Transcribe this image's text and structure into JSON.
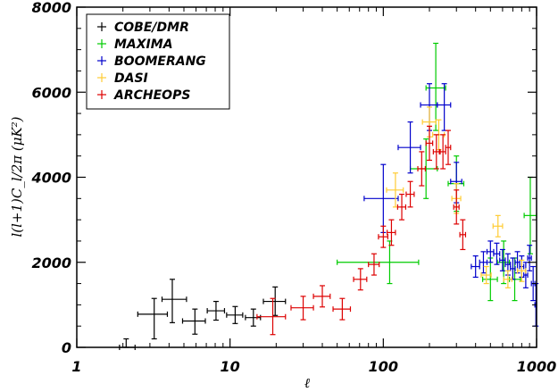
{
  "chart_data": {
    "type": "scatter",
    "x_scale": "log",
    "xlim": [
      1,
      1000
    ],
    "ylim": [
      0,
      8000
    ],
    "xlabel": "ℓ",
    "ylabel": "l(l+1)C_l/2π  (μK²)",
    "x_ticks": [
      {
        "value": 1,
        "label": "1"
      },
      {
        "value": 10,
        "label": "10"
      },
      {
        "value": 100,
        "label": "100"
      },
      {
        "value": 1000,
        "label": "1000"
      }
    ],
    "y_ticks": [
      {
        "value": 0,
        "label": "0"
      },
      {
        "value": 2000,
        "label": "2000"
      },
      {
        "value": 4000,
        "label": "4000"
      },
      {
        "value": 6000,
        "label": "6000"
      },
      {
        "value": 8000,
        "label": "8000"
      }
    ],
    "legend": "top-left",
    "series": [
      {
        "name": "COBE/DMR",
        "color": "#000000",
        "points": [
          {
            "x": 2.1,
            "x_lo": 1.9,
            "x_hi": 2.4,
            "y": 0,
            "y_lo": 0,
            "y_hi": 200
          },
          {
            "x": 3.2,
            "x_lo": 2.5,
            "x_hi": 3.9,
            "y": 780,
            "y_lo": 200,
            "y_hi": 1150
          },
          {
            "x": 4.2,
            "x_lo": 3.6,
            "x_hi": 5.2,
            "y": 1130,
            "y_lo": 580,
            "y_hi": 1600
          },
          {
            "x": 5.9,
            "x_lo": 4.9,
            "x_hi": 6.9,
            "y": 620,
            "y_lo": 310,
            "y_hi": 900
          },
          {
            "x": 8.1,
            "x_lo": 7.1,
            "x_hi": 9.2,
            "y": 860,
            "y_lo": 640,
            "y_hi": 1080
          },
          {
            "x": 10.8,
            "x_lo": 9.5,
            "x_hi": 12.1,
            "y": 760,
            "y_lo": 560,
            "y_hi": 960
          },
          {
            "x": 14.2,
            "x_lo": 12.6,
            "x_hi": 15.8,
            "y": 700,
            "y_lo": 500,
            "y_hi": 900
          },
          {
            "x": 19.7,
            "x_lo": 16.5,
            "x_hi": 23.0,
            "y": 1080,
            "y_lo": 750,
            "y_hi": 1420
          }
        ]
      },
      {
        "name": "MAXIMA",
        "color": "#00cc00",
        "points": [
          {
            "x": 110,
            "x_lo": 50,
            "x_hi": 170,
            "y": 2000,
            "y_lo": 1500,
            "y_hi": 2500
          },
          {
            "x": 190,
            "x_lo": 150,
            "x_hi": 225,
            "y": 4200,
            "y_lo": 3500,
            "y_hi": 4900
          },
          {
            "x": 220,
            "x_lo": 190,
            "x_hi": 255,
            "y": 6100,
            "y_lo": 5100,
            "y_hi": 7150
          },
          {
            "x": 300,
            "x_lo": 265,
            "x_hi": 335,
            "y": 3850,
            "y_lo": 3200,
            "y_hi": 4500
          },
          {
            "x": 500,
            "x_lo": 445,
            "x_hi": 555,
            "y": 1600,
            "y_lo": 1100,
            "y_hi": 2100
          },
          {
            "x": 610,
            "x_lo": 555,
            "x_hi": 665,
            "y": 2000,
            "y_lo": 1500,
            "y_hi": 2500
          },
          {
            "x": 720,
            "x_lo": 665,
            "x_hi": 785,
            "y": 1600,
            "y_lo": 1100,
            "y_hi": 2100
          },
          {
            "x": 910,
            "x_lo": 830,
            "x_hi": 1000,
            "y": 3100,
            "y_lo": 2200,
            "y_hi": 4000
          }
        ]
      },
      {
        "name": "BOOMERANG",
        "color": "#0000cc",
        "points": [
          {
            "x": 100,
            "x_lo": 75,
            "x_hi": 125,
            "y": 3500,
            "y_lo": 2700,
            "y_hi": 4300
          },
          {
            "x": 150,
            "x_lo": 125,
            "x_hi": 175,
            "y": 4700,
            "y_lo": 4100,
            "y_hi": 5300
          },
          {
            "x": 200,
            "x_lo": 175,
            "x_hi": 225,
            "y": 5700,
            "y_lo": 5100,
            "y_hi": 6200
          },
          {
            "x": 250,
            "x_lo": 225,
            "x_hi": 275,
            "y": 5700,
            "y_lo": 5100,
            "y_hi": 6200
          },
          {
            "x": 300,
            "x_lo": 275,
            "x_hi": 325,
            "y": 3900,
            "y_lo": 3400,
            "y_hi": 4350
          },
          {
            "x": 400,
            "x_lo": 375,
            "x_hi": 425,
            "y": 1900,
            "y_lo": 1650,
            "y_hi": 2150
          },
          {
            "x": 450,
            "x_lo": 425,
            "x_hi": 475,
            "y": 2000,
            "y_lo": 1750,
            "y_hi": 2250
          },
          {
            "x": 500,
            "x_lo": 475,
            "x_hi": 525,
            "y": 2250,
            "y_lo": 2000,
            "y_hi": 2500
          },
          {
            "x": 550,
            "x_lo": 525,
            "x_hi": 575,
            "y": 2200,
            "y_lo": 1950,
            "y_hi": 2450
          },
          {
            "x": 600,
            "x_lo": 575,
            "x_hi": 625,
            "y": 2050,
            "y_lo": 1800,
            "y_hi": 2300
          },
          {
            "x": 650,
            "x_lo": 625,
            "x_hi": 675,
            "y": 1950,
            "y_lo": 1700,
            "y_hi": 2200
          },
          {
            "x": 700,
            "x_lo": 675,
            "x_hi": 725,
            "y": 1850,
            "y_lo": 1600,
            "y_hi": 2100
          },
          {
            "x": 750,
            "x_lo": 725,
            "x_hi": 775,
            "y": 2000,
            "y_lo": 1750,
            "y_hi": 2250
          },
          {
            "x": 800,
            "x_lo": 775,
            "x_hi": 825,
            "y": 1900,
            "y_lo": 1650,
            "y_hi": 2150
          },
          {
            "x": 850,
            "x_lo": 825,
            "x_hi": 875,
            "y": 1700,
            "y_lo": 1400,
            "y_hi": 2000
          },
          {
            "x": 900,
            "x_lo": 875,
            "x_hi": 925,
            "y": 2100,
            "y_lo": 1800,
            "y_hi": 2400
          },
          {
            "x": 950,
            "x_lo": 925,
            "x_hi": 975,
            "y": 1500,
            "y_lo": 1100,
            "y_hi": 1900
          },
          {
            "x": 990,
            "x_lo": 975,
            "x_hi": 1000,
            "y": 1000,
            "y_lo": 500,
            "y_hi": 1500
          }
        ]
      },
      {
        "name": "DASI",
        "color": "#ffcc33",
        "points": [
          {
            "x": 120,
            "x_lo": 105,
            "x_hi": 135,
            "y": 3700,
            "y_lo": 3300,
            "y_hi": 4100
          },
          {
            "x": 200,
            "x_lo": 180,
            "x_hi": 220,
            "y": 5300,
            "y_lo": 4950,
            "y_hi": 5650
          },
          {
            "x": 230,
            "x_lo": 210,
            "x_hi": 250,
            "y": 5000,
            "y_lo": 4650,
            "y_hi": 5350
          },
          {
            "x": 300,
            "x_lo": 280,
            "x_hi": 320,
            "y": 3500,
            "y_lo": 3150,
            "y_hi": 3850
          },
          {
            "x": 470,
            "x_lo": 435,
            "x_hi": 505,
            "y": 1700,
            "y_lo": 1500,
            "y_hi": 1900
          },
          {
            "x": 560,
            "x_lo": 520,
            "x_hi": 600,
            "y": 2850,
            "y_lo": 2600,
            "y_hi": 3100
          },
          {
            "x": 650,
            "x_lo": 610,
            "x_hi": 690,
            "y": 1600,
            "y_lo": 1400,
            "y_hi": 1800
          },
          {
            "x": 800,
            "x_lo": 750,
            "x_hi": 850,
            "y": 1800,
            "y_lo": 1550,
            "y_hi": 2050
          }
        ]
      },
      {
        "name": "ARCHEOPS",
        "color": "#dd0000",
        "points": [
          {
            "x": 19,
            "x_lo": 15,
            "x_hi": 23,
            "y": 720,
            "y_lo": 300,
            "y_hi": 1150
          },
          {
            "x": 30,
            "x_lo": 25,
            "x_hi": 35,
            "y": 930,
            "y_lo": 650,
            "y_hi": 1200
          },
          {
            "x": 40,
            "x_lo": 35,
            "x_hi": 45,
            "y": 1200,
            "y_lo": 950,
            "y_hi": 1450
          },
          {
            "x": 54,
            "x_lo": 47,
            "x_hi": 61,
            "y": 900,
            "y_lo": 650,
            "y_hi": 1150
          },
          {
            "x": 71,
            "x_lo": 64,
            "x_hi": 78,
            "y": 1600,
            "y_lo": 1350,
            "y_hi": 1850
          },
          {
            "x": 87,
            "x_lo": 80,
            "x_hi": 94,
            "y": 1950,
            "y_lo": 1700,
            "y_hi": 2200
          },
          {
            "x": 100,
            "x_lo": 93,
            "x_hi": 107,
            "y": 2600,
            "y_lo": 2350,
            "y_hi": 2850
          },
          {
            "x": 113,
            "x_lo": 106,
            "x_hi": 120,
            "y": 2700,
            "y_lo": 2400,
            "y_hi": 3000
          },
          {
            "x": 132,
            "x_lo": 124,
            "x_hi": 140,
            "y": 3300,
            "y_lo": 3000,
            "y_hi": 3600
          },
          {
            "x": 150,
            "x_lo": 141,
            "x_hi": 159,
            "y": 3600,
            "y_lo": 3300,
            "y_hi": 3900
          },
          {
            "x": 178,
            "x_lo": 168,
            "x_hi": 188,
            "y": 4200,
            "y_lo": 3800,
            "y_hi": 4600
          },
          {
            "x": 200,
            "x_lo": 190,
            "x_hi": 210,
            "y": 4800,
            "y_lo": 4400,
            "y_hi": 5200
          },
          {
            "x": 222,
            "x_lo": 212,
            "x_hi": 232,
            "y": 4600,
            "y_lo": 4200,
            "y_hi": 5000
          },
          {
            "x": 245,
            "x_lo": 235,
            "x_hi": 255,
            "y": 4600,
            "y_lo": 4200,
            "y_hi": 5000
          },
          {
            "x": 265,
            "x_lo": 255,
            "x_hi": 275,
            "y": 4700,
            "y_lo": 4300,
            "y_hi": 5100
          },
          {
            "x": 300,
            "x_lo": 288,
            "x_hi": 312,
            "y": 3300,
            "y_lo": 2900,
            "y_hi": 3700
          },
          {
            "x": 330,
            "x_lo": 316,
            "x_hi": 344,
            "y": 2650,
            "y_lo": 2300,
            "y_hi": 3000
          }
        ]
      }
    ]
  }
}
